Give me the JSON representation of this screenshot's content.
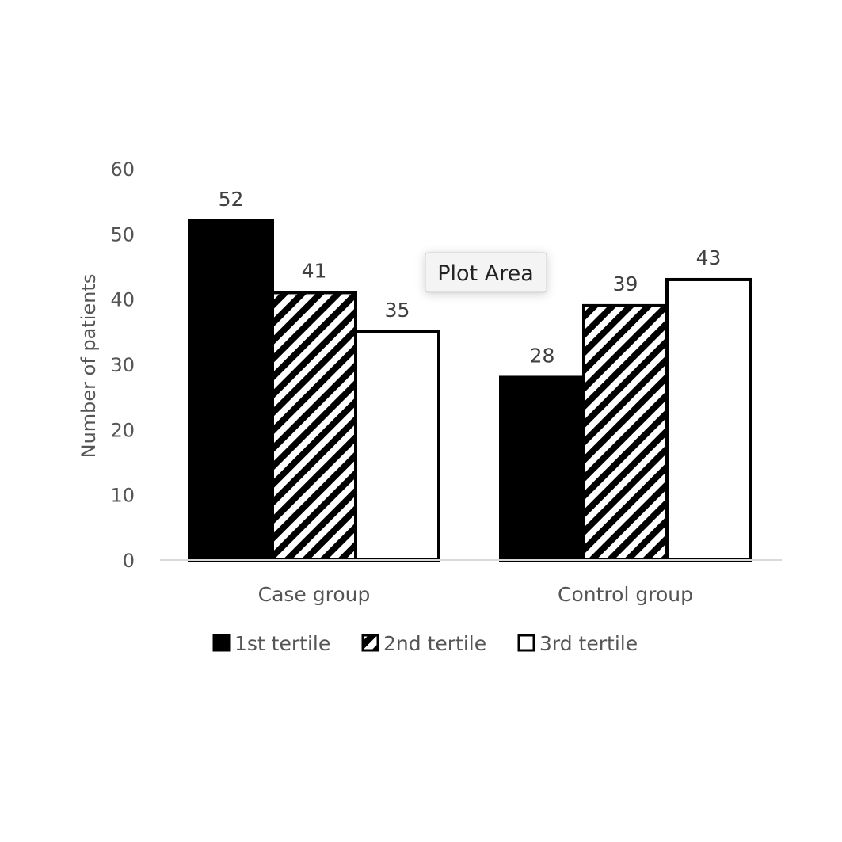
{
  "chart_data": {
    "type": "bar",
    "categories": [
      "Case group",
      "Control group"
    ],
    "series": [
      {
        "name": "1st tertile",
        "values": [
          52,
          28
        ],
        "fill": "solid-black"
      },
      {
        "name": "2nd tertile",
        "values": [
          41,
          39
        ],
        "fill": "diagonal-hatch"
      },
      {
        "name": "3rd tertile",
        "values": [
          35,
          43
        ],
        "fill": "white"
      }
    ],
    "ylabel": "Number of patients",
    "xlabel": "",
    "ylim": [
      0,
      60
    ],
    "yticks": [
      0,
      10,
      20,
      30,
      40,
      50,
      60
    ],
    "grid": false,
    "legend": "bottom",
    "data_labels": true
  },
  "tooltip": {
    "label": "Plot Area"
  },
  "colors": {
    "bar_fill": "#000000",
    "bar_outline": "#000000",
    "axis_text": "#555555",
    "axis_line": "#d9d9d9"
  }
}
